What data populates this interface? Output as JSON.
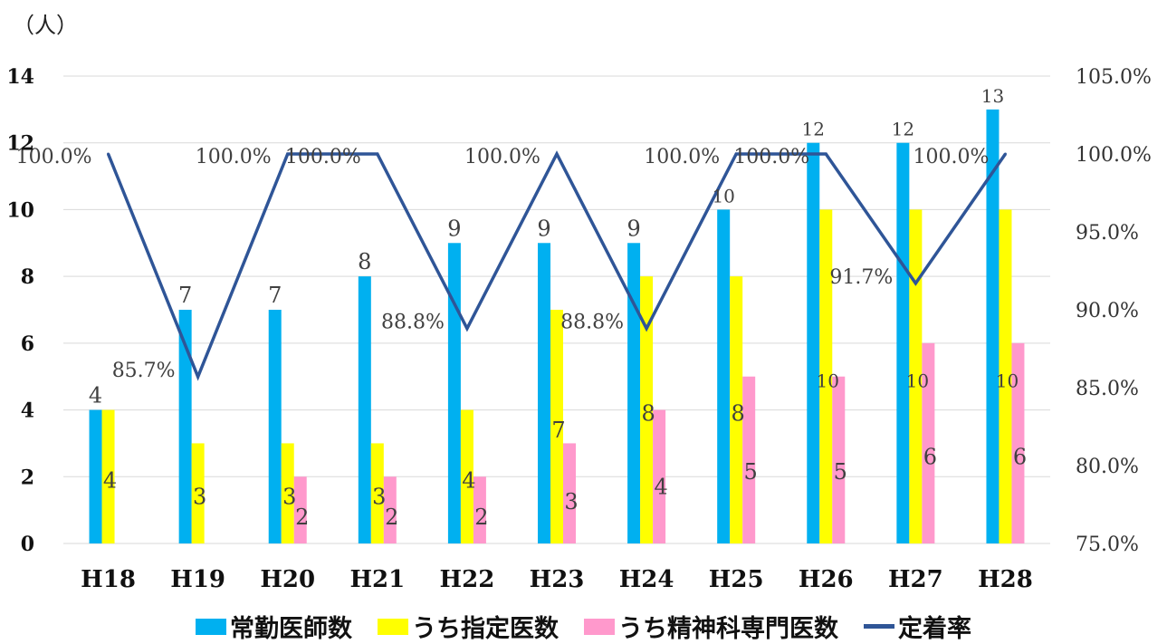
{
  "unit_label": "（人）",
  "chart_data": {
    "type": "bar",
    "categories": [
      "H18",
      "H19",
      "H20",
      "H21",
      "H22",
      "H23",
      "H24",
      "H25",
      "H26",
      "H27",
      "H28"
    ],
    "series": [
      {
        "name": "常勤医師数",
        "type": "bar",
        "color": "#00b0f0",
        "values": [
          4,
          7,
          7,
          8,
          9,
          9,
          9,
          10,
          12,
          12,
          13
        ]
      },
      {
        "name": "うち指定医数",
        "type": "bar",
        "color": "#ffff00",
        "values": [
          4,
          3,
          3,
          3,
          4,
          7,
          8,
          8,
          10,
          10,
          10
        ]
      },
      {
        "name": "うち精神科専門医数",
        "type": "bar",
        "color": "#ff99cc",
        "values": [
          null,
          null,
          2,
          2,
          2,
          3,
          4,
          5,
          5,
          6,
          6
        ]
      },
      {
        "name": "定着率",
        "type": "line",
        "axis": "right",
        "color": "#2f5597",
        "values": [
          100.0,
          85.7,
          100.0,
          100.0,
          88.8,
          100.0,
          88.8,
          100.0,
          100.0,
          91.7,
          100.0
        ]
      }
    ],
    "y_left": {
      "min": 0,
      "max": 14,
      "ticks": [
        "0",
        "2",
        "4",
        "6",
        "8",
        "10",
        "12",
        "14"
      ]
    },
    "y_right": {
      "min": 75,
      "max": 105,
      "ticks": [
        "75.0%",
        "80.0%",
        "85.0%",
        "90.0%",
        "95.0%",
        "100.0%",
        "105.0%"
      ]
    },
    "line_labels": [
      "100.0%",
      "85.7%",
      "100.0%",
      "100.0%",
      "88.8%",
      "100.0%",
      "88.8%",
      "100.0%",
      "100.0%",
      "91.7%",
      "100.0%"
    ],
    "grid": true,
    "legend_position": "bottom"
  }
}
